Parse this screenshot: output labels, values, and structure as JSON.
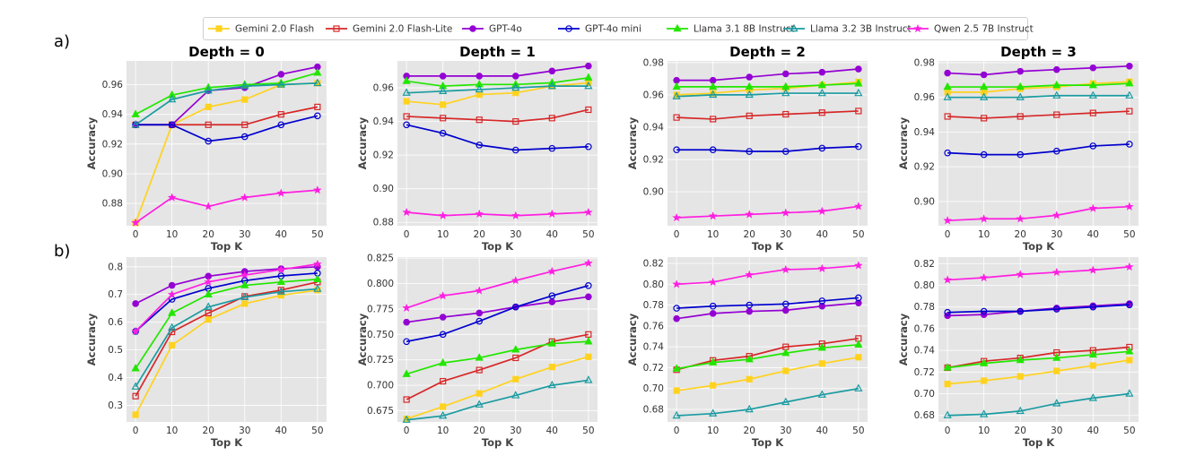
{
  "row_labels": [
    "a)",
    "b)"
  ],
  "series_styles": [
    {
      "name": "Gemini 2.0 Flash",
      "color": "#FFD21F",
      "marker": "square",
      "filled": true
    },
    {
      "name": "Gemini 2.0 Flash-Lite",
      "color": "#D62728",
      "marker": "square",
      "filled": false
    },
    {
      "name": "GPT-4o",
      "color": "#9400D3",
      "marker": "circle",
      "filled": true
    },
    {
      "name": "GPT-4o mini",
      "color": "#0000CD",
      "marker": "circle",
      "filled": false
    },
    {
      "name": "Llama 3.1 8B Instruct",
      "color": "#22E600",
      "marker": "triangle",
      "filled": true
    },
    {
      "name": "Llama 3.2 3B Instruct",
      "color": "#1A9BA1",
      "marker": "triangle",
      "filled": false
    },
    {
      "name": "Qwen 2.5 7B Instruct",
      "color": "#FF1FE1",
      "marker": "star",
      "filled": true
    }
  ],
  "chart_data": [
    {
      "type": "line",
      "row": "a)",
      "title": "Depth = 0",
      "xlabel": "Top K",
      "ylabel": "Accuracy",
      "x": [
        0,
        10,
        20,
        30,
        40,
        50
      ],
      "xlim": [
        -2.5,
        52.5
      ],
      "ylim": [
        0.865,
        0.976
      ],
      "yticks": [
        0.88,
        0.9,
        0.92,
        0.94,
        0.96
      ],
      "ytick_labels": [
        "0.88",
        "0.90",
        "0.92",
        "0.94",
        "0.96"
      ],
      "series": [
        {
          "name": "Gemini 2.0 Flash",
          "values": [
            0.867,
            0.933,
            0.945,
            0.95,
            0.96,
            0.961
          ]
        },
        {
          "name": "Gemini 2.0 Flash-Lite",
          "values": [
            0.933,
            0.933,
            0.933,
            0.933,
            0.94,
            0.945
          ]
        },
        {
          "name": "GPT-4o",
          "values": [
            0.933,
            0.933,
            0.956,
            0.958,
            0.967,
            0.972
          ]
        },
        {
          "name": "GPT-4o mini",
          "values": [
            0.933,
            0.933,
            0.922,
            0.925,
            0.933,
            0.939
          ]
        },
        {
          "name": "Llama 3.1 8B Instruct",
          "values": [
            0.94,
            0.953,
            0.958,
            0.96,
            0.961,
            0.968
          ]
        },
        {
          "name": "Llama 3.2 3B Instruct",
          "values": [
            0.933,
            0.95,
            0.956,
            0.959,
            0.96,
            0.961
          ]
        },
        {
          "name": "Qwen 2.5 7B Instruct",
          "values": [
            0.867,
            0.884,
            0.878,
            0.884,
            0.887,
            0.889
          ]
        }
      ]
    },
    {
      "type": "line",
      "row": "a)",
      "title": "Depth = 1",
      "xlabel": "Top K",
      "ylabel": "Accuracy",
      "x": [
        0,
        10,
        20,
        30,
        40,
        50
      ],
      "xlim": [
        -2.5,
        52.5
      ],
      "ylim": [
        0.878,
        0.976
      ],
      "yticks": [
        0.88,
        0.9,
        0.92,
        0.94,
        0.96
      ],
      "ytick_labels": [
        "0.88",
        "0.90",
        "0.92",
        "0.94",
        "0.96"
      ],
      "series": [
        {
          "name": "Gemini 2.0 Flash",
          "values": [
            0.952,
            0.95,
            0.956,
            0.957,
            0.961,
            0.963
          ]
        },
        {
          "name": "Gemini 2.0 Flash-Lite",
          "values": [
            0.943,
            0.942,
            0.941,
            0.94,
            0.942,
            0.947
          ]
        },
        {
          "name": "GPT-4o",
          "values": [
            0.967,
            0.967,
            0.967,
            0.967,
            0.97,
            0.973
          ]
        },
        {
          "name": "GPT-4o mini",
          "values": [
            0.938,
            0.933,
            0.926,
            0.923,
            0.924,
            0.925
          ]
        },
        {
          "name": "Llama 3.1 8B Instruct",
          "values": [
            0.964,
            0.961,
            0.962,
            0.962,
            0.963,
            0.966
          ]
        },
        {
          "name": "Llama 3.2 3B Instruct",
          "values": [
            0.957,
            0.958,
            0.959,
            0.96,
            0.961,
            0.961
          ]
        },
        {
          "name": "Qwen 2.5 7B Instruct",
          "values": [
            0.886,
            0.884,
            0.885,
            0.884,
            0.885,
            0.886
          ]
        }
      ]
    },
    {
      "type": "line",
      "row": "a)",
      "title": "Depth = 2",
      "xlabel": "Top K",
      "ylabel": "Accuracy",
      "x": [
        0,
        10,
        20,
        30,
        40,
        50
      ],
      "xlim": [
        -2.5,
        52.5
      ],
      "ylim": [
        0.879,
        0.981
      ],
      "yticks": [
        0.9,
        0.92,
        0.94,
        0.96,
        0.98
      ],
      "ytick_labels": [
        "0.90",
        "0.92",
        "0.94",
        "0.96",
        "0.98"
      ],
      "series": [
        {
          "name": "Gemini 2.0 Flash",
          "values": [
            0.96,
            0.961,
            0.963,
            0.964,
            0.966,
            0.968
          ]
        },
        {
          "name": "Gemini 2.0 Flash-Lite",
          "values": [
            0.946,
            0.945,
            0.947,
            0.948,
            0.949,
            0.95
          ]
        },
        {
          "name": "GPT-4o",
          "values": [
            0.969,
            0.969,
            0.971,
            0.973,
            0.974,
            0.976
          ]
        },
        {
          "name": "GPT-4o mini",
          "values": [
            0.926,
            0.926,
            0.925,
            0.925,
            0.927,
            0.928
          ]
        },
        {
          "name": "Llama 3.1 8B Instruct",
          "values": [
            0.965,
            0.965,
            0.965,
            0.965,
            0.966,
            0.967
          ]
        },
        {
          "name": "Llama 3.2 3B Instruct",
          "values": [
            0.959,
            0.96,
            0.96,
            0.961,
            0.961,
            0.961
          ]
        },
        {
          "name": "Qwen 2.5 7B Instruct",
          "values": [
            0.884,
            0.885,
            0.886,
            0.887,
            0.888,
            0.891
          ]
        }
      ]
    },
    {
      "type": "line",
      "row": "a)",
      "title": "Depth = 3",
      "xlabel": "Top K",
      "ylabel": "Accuracy",
      "x": [
        0,
        10,
        20,
        30,
        40,
        50
      ],
      "xlim": [
        -2.5,
        52.5
      ],
      "ylim": [
        0.886,
        0.981
      ],
      "yticks": [
        0.9,
        0.92,
        0.94,
        0.96,
        0.98
      ],
      "ytick_labels": [
        "0.90",
        "0.92",
        "0.94",
        "0.96",
        "0.98"
      ],
      "series": [
        {
          "name": "Gemini 2.0 Flash",
          "values": [
            0.963,
            0.963,
            0.965,
            0.966,
            0.968,
            0.969
          ]
        },
        {
          "name": "Gemini 2.0 Flash-Lite",
          "values": [
            0.949,
            0.948,
            0.949,
            0.95,
            0.951,
            0.952
          ]
        },
        {
          "name": "GPT-4o",
          "values": [
            0.974,
            0.973,
            0.975,
            0.976,
            0.977,
            0.978
          ]
        },
        {
          "name": "GPT-4o mini",
          "values": [
            0.928,
            0.927,
            0.927,
            0.929,
            0.932,
            0.933
          ]
        },
        {
          "name": "Llama 3.1 8B Instruct",
          "values": [
            0.966,
            0.966,
            0.966,
            0.967,
            0.967,
            0.968
          ]
        },
        {
          "name": "Llama 3.2 3B Instruct",
          "values": [
            0.96,
            0.96,
            0.96,
            0.961,
            0.961,
            0.961
          ]
        },
        {
          "name": "Qwen 2.5 7B Instruct",
          "values": [
            0.889,
            0.89,
            0.89,
            0.892,
            0.896,
            0.897
          ]
        }
      ]
    },
    {
      "type": "line",
      "row": "b)",
      "title": "",
      "xlabel": "Top K",
      "ylabel": "Accuracy",
      "x": [
        0,
        10,
        20,
        30,
        40,
        50
      ],
      "xlim": [
        -2.5,
        52.5
      ],
      "ylim": [
        0.24,
        0.835
      ],
      "yticks": [
        0.3,
        0.4,
        0.5,
        0.6,
        0.7,
        0.8
      ],
      "ytick_labels": [
        "0.3",
        "0.4",
        "0.5",
        "0.6",
        "0.7",
        "0.8"
      ],
      "series": [
        {
          "name": "Gemini 2.0 Flash",
          "values": [
            0.266,
            0.517,
            0.61,
            0.667,
            0.697,
            0.716
          ]
        },
        {
          "name": "Gemini 2.0 Flash-Lite",
          "values": [
            0.333,
            0.565,
            0.633,
            0.693,
            0.716,
            0.745
          ]
        },
        {
          "name": "GPT-4o",
          "values": [
            0.667,
            0.733,
            0.766,
            0.783,
            0.793,
            0.8
          ]
        },
        {
          "name": "GPT-4o mini",
          "values": [
            0.567,
            0.683,
            0.722,
            0.75,
            0.767,
            0.777
          ]
        },
        {
          "name": "Llama 3.1 8B Instruct",
          "values": [
            0.433,
            0.633,
            0.7,
            0.733,
            0.745,
            0.755
          ]
        },
        {
          "name": "Llama 3.2 3B Instruct",
          "values": [
            0.367,
            0.58,
            0.655,
            0.69,
            0.71,
            0.72
          ]
        },
        {
          "name": "Qwen 2.5 7B Instruct",
          "values": [
            0.567,
            0.7,
            0.745,
            0.77,
            0.79,
            0.81
          ]
        }
      ]
    },
    {
      "type": "line",
      "row": "b)",
      "title": "",
      "xlabel": "Top K",
      "ylabel": "Accuracy",
      "x": [
        0,
        10,
        20,
        30,
        40,
        50
      ],
      "xlim": [
        -2.5,
        52.5
      ],
      "ylim": [
        0.664,
        0.826
      ],
      "yticks": [
        0.675,
        0.7,
        0.725,
        0.75,
        0.775,
        0.8,
        0.825
      ],
      "ytick_labels": [
        "0.675",
        "0.700",
        "0.725",
        "0.750",
        "0.775",
        "0.800",
        "0.825"
      ],
      "series": [
        {
          "name": "Gemini 2.0 Flash",
          "values": [
            0.667,
            0.679,
            0.692,
            0.706,
            0.718,
            0.728
          ]
        },
        {
          "name": "Gemini 2.0 Flash-Lite",
          "values": [
            0.686,
            0.704,
            0.715,
            0.727,
            0.743,
            0.75
          ]
        },
        {
          "name": "GPT-4o",
          "values": [
            0.762,
            0.767,
            0.771,
            0.777,
            0.782,
            0.787
          ]
        },
        {
          "name": "GPT-4o mini",
          "values": [
            0.743,
            0.75,
            0.763,
            0.777,
            0.788,
            0.798
          ]
        },
        {
          "name": "Llama 3.1 8B Instruct",
          "values": [
            0.711,
            0.722,
            0.727,
            0.735,
            0.741,
            0.743
          ]
        },
        {
          "name": "Llama 3.2 3B Instruct",
          "values": [
            0.666,
            0.67,
            0.681,
            0.69,
            0.7,
            0.705
          ]
        },
        {
          "name": "Qwen 2.5 7B Instruct",
          "values": [
            0.776,
            0.788,
            0.793,
            0.803,
            0.812,
            0.82
          ]
        }
      ]
    },
    {
      "type": "line",
      "row": "b)",
      "title": "",
      "xlabel": "Top K",
      "ylabel": "Accuracy",
      "x": [
        0,
        10,
        20,
        30,
        40,
        50
      ],
      "xlim": [
        -2.5,
        52.5
      ],
      "ylim": [
        0.668,
        0.826
      ],
      "yticks": [
        0.68,
        0.7,
        0.72,
        0.74,
        0.76,
        0.78,
        0.8,
        0.82
      ],
      "ytick_labels": [
        "0.68",
        "0.70",
        "0.72",
        "0.74",
        "0.76",
        "0.78",
        "0.80",
        "0.82"
      ],
      "series": [
        {
          "name": "Gemini 2.0 Flash",
          "values": [
            0.698,
            0.703,
            0.709,
            0.717,
            0.724,
            0.73
          ]
        },
        {
          "name": "Gemini 2.0 Flash-Lite",
          "values": [
            0.718,
            0.727,
            0.731,
            0.74,
            0.743,
            0.748
          ]
        },
        {
          "name": "GPT-4o",
          "values": [
            0.767,
            0.772,
            0.774,
            0.775,
            0.779,
            0.782
          ]
        },
        {
          "name": "GPT-4o mini",
          "values": [
            0.777,
            0.779,
            0.78,
            0.781,
            0.784,
            0.787
          ]
        },
        {
          "name": "Llama 3.1 8B Instruct",
          "values": [
            0.719,
            0.725,
            0.728,
            0.734,
            0.739,
            0.742
          ]
        },
        {
          "name": "Llama 3.2 3B Instruct",
          "values": [
            0.674,
            0.676,
            0.68,
            0.687,
            0.694,
            0.7
          ]
        },
        {
          "name": "Qwen 2.5 7B Instruct",
          "values": [
            0.8,
            0.802,
            0.809,
            0.814,
            0.815,
            0.818
          ]
        }
      ]
    },
    {
      "type": "line",
      "row": "b)",
      "title": "",
      "xlabel": "Top K",
      "ylabel": "Accuracy",
      "x": [
        0,
        10,
        20,
        30,
        40,
        50
      ],
      "xlim": [
        -2.5,
        52.5
      ],
      "ylim": [
        0.674,
        0.826
      ],
      "yticks": [
        0.68,
        0.7,
        0.72,
        0.74,
        0.76,
        0.78,
        0.8,
        0.82
      ],
      "ytick_labels": [
        "0.68",
        "0.70",
        "0.72",
        "0.74",
        "0.76",
        "0.78",
        "0.80",
        "0.82"
      ],
      "series": [
        {
          "name": "Gemini 2.0 Flash",
          "values": [
            0.709,
            0.712,
            0.716,
            0.721,
            0.726,
            0.731
          ]
        },
        {
          "name": "Gemini 2.0 Flash-Lite",
          "values": [
            0.724,
            0.73,
            0.733,
            0.738,
            0.74,
            0.743
          ]
        },
        {
          "name": "GPT-4o",
          "values": [
            0.772,
            0.773,
            0.776,
            0.779,
            0.781,
            0.783
          ]
        },
        {
          "name": "GPT-4o mini",
          "values": [
            0.775,
            0.776,
            0.776,
            0.778,
            0.78,
            0.782
          ]
        },
        {
          "name": "Llama 3.1 8B Instruct",
          "values": [
            0.724,
            0.728,
            0.731,
            0.733,
            0.736,
            0.739
          ]
        },
        {
          "name": "Llama 3.2 3B Instruct",
          "values": [
            0.68,
            0.681,
            0.684,
            0.691,
            0.696,
            0.7
          ]
        },
        {
          "name": "Qwen 2.5 7B Instruct",
          "values": [
            0.805,
            0.807,
            0.81,
            0.812,
            0.814,
            0.817
          ]
        }
      ]
    }
  ]
}
